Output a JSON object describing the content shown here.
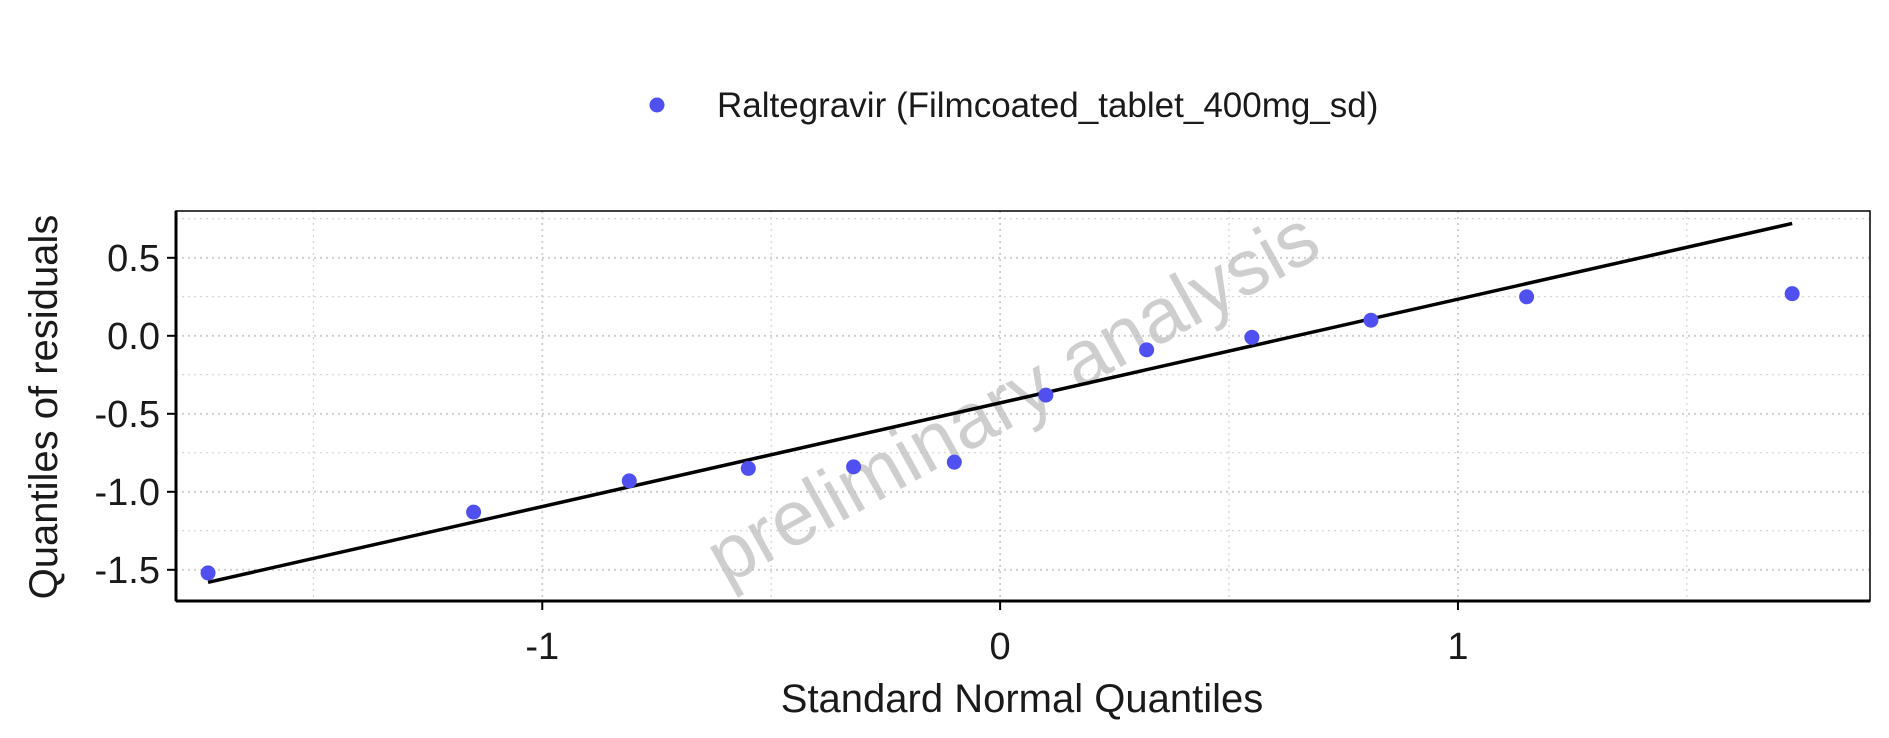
{
  "chart_data": {
    "type": "scatter",
    "xlabel": "Standard Normal Quantiles",
    "ylabel": "Quantiles of residuals",
    "watermark": "preliminary analysis",
    "xlim": [
      -1.8,
      1.9
    ],
    "ylim": [
      -1.7,
      0.8
    ],
    "x_ticks": [
      -1,
      0,
      1
    ],
    "x_tick_labels": [
      "-1",
      "0",
      "1"
    ],
    "y_ticks": [
      -1.5,
      -1.0,
      -0.5,
      0.0,
      0.5
    ],
    "y_tick_labels": [
      "-1.5",
      "-1.0",
      "-0.5",
      "0.0",
      "0.5"
    ],
    "x_minor_grid": [
      -1.5,
      -0.5,
      0.5,
      1.5
    ],
    "y_minor_grid": [
      -1.25,
      -0.75,
      -0.25,
      0.25,
      0.75
    ],
    "grid": true,
    "legend_position": "top",
    "colors": {
      "points": "#5050f0",
      "line": "#000000",
      "grid": "#cccccc"
    },
    "series": [
      {
        "name": "Raltegravir (Filmcoated_tablet_400mg_sd)",
        "x": [
          -1.73,
          -1.15,
          -0.81,
          -0.55,
          -0.32,
          -0.1,
          0.1,
          0.32,
          0.55,
          0.81,
          1.15,
          1.73
        ],
        "y": [
          -1.52,
          -1.13,
          -0.93,
          -0.85,
          -0.84,
          -0.81,
          -0.38,
          -0.09,
          -0.01,
          0.1,
          0.25,
          0.27
        ]
      }
    ],
    "reference_line": {
      "x": [
        -1.73,
        1.73
      ],
      "y": [
        -1.58,
        0.72
      ]
    }
  }
}
